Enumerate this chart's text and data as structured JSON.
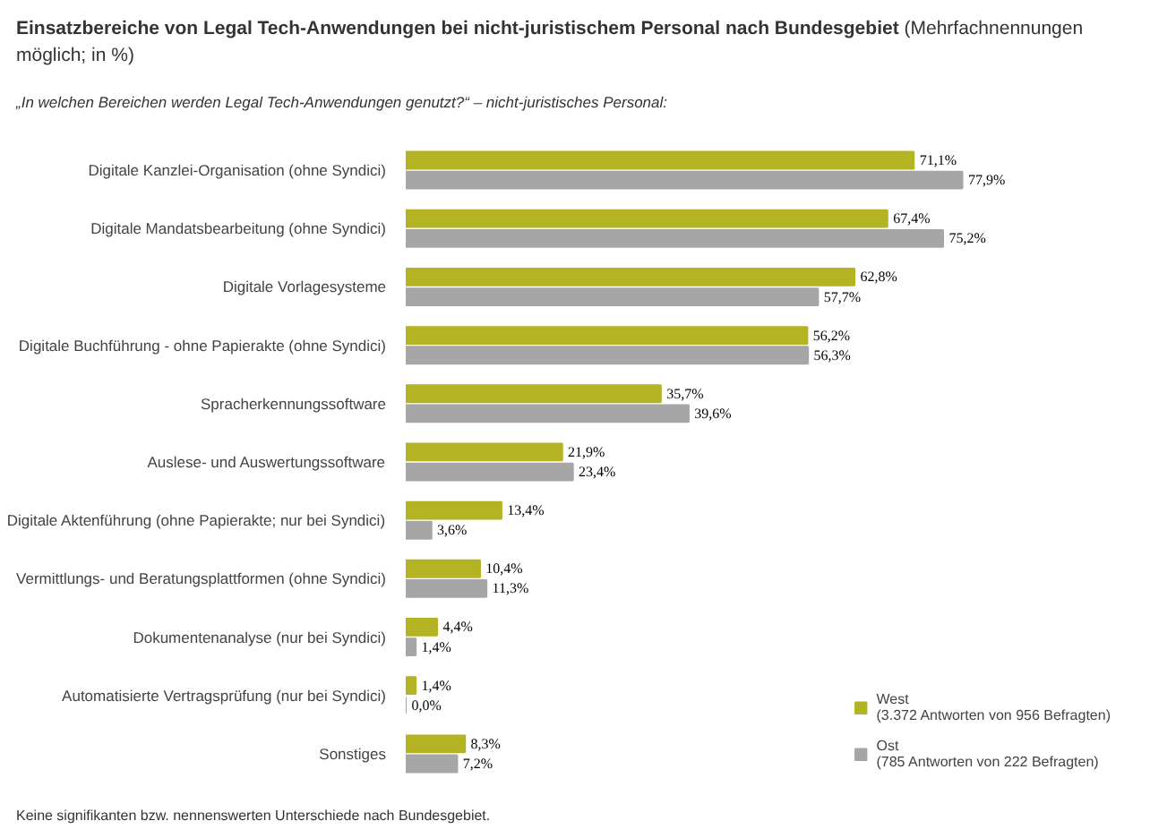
{
  "chart_data": {
    "type": "bar",
    "orientation": "horizontal",
    "title": "Einsatzbereiche von Legal Tech-Anwendungen bei nicht-juristischem Personal nach Bundesgebiet",
    "subtitle": "(Mehrfachnennungen möglich; in %)",
    "annotations": [
      "„In welchen Bereichen werden Legal Tech-Anwendungen genutzt?“ – nicht-juristisches Personal:",
      "Keine signifikanten bzw. nennenswerten Unterschiede nach Bundesgebiet."
    ],
    "categories": [
      "Digitale Kanzlei-Organisation (ohne Syndici)",
      "Digitale Mandatsbearbeitung (ohne Syndici)",
      "Digitale Vorlagesysteme",
      "Digitale Buchführung - ohne Papierakte (ohne Syndici)",
      "Spracherkennungssoftware",
      "Auslese- und Auswertungssoftware",
      "Digitale Aktenführung (ohne Papierakte; nur bei Syndici)",
      "Vermittlungs- und Beratungsplattformen (ohne Syndici)",
      "Dokumentenanalyse (nur bei Syndici)",
      "Automatisierte Vertragsprüfung (nur bei Syndici)",
      "Sonstiges"
    ],
    "series": [
      {
        "name": "West\n(3.372 Antworten von 956 Befragten)",
        "color": "#b3b324",
        "values": [
          71.1,
          67.4,
          62.8,
          56.2,
          35.7,
          21.9,
          13.4,
          10.4,
          4.4,
          1.4,
          8.3
        ],
        "value_labels": [
          "71,1%",
          "67,4%",
          "62,8%",
          "56,2%",
          "35,7%",
          "21,9%",
          "13,4%",
          "10,4%",
          "4,4%",
          "1,4%",
          "8,3%"
        ]
      },
      {
        "name": "Ost\n(785 Antworten von 222 Befragten)",
        "color": "#a6a6a6",
        "values": [
          77.9,
          75.2,
          57.7,
          56.3,
          39.6,
          23.4,
          3.6,
          11.3,
          1.4,
          0.0,
          7.2
        ],
        "value_labels": [
          "77,9%",
          "75,2%",
          "57,7%",
          "56,3%",
          "39,6%",
          "23,4%",
          "3,6%",
          "11,3%",
          "1,4%",
          "0,0%",
          "7,2%"
        ]
      }
    ],
    "tick_labels": false,
    "grid": false,
    "legend": "bottom right"
  }
}
